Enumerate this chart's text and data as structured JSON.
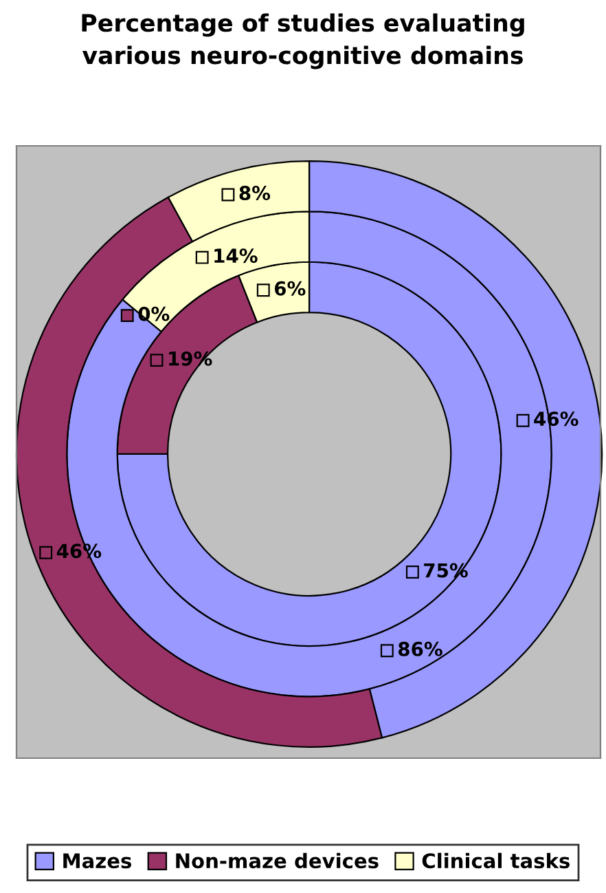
{
  "chart_data": {
    "type": "donut",
    "title": "Percentage of studies evaluating\nvarious neuro-cognitive domains",
    "categories": [
      "Mazes",
      "Non-maze devices",
      "Clinical tasks"
    ],
    "colors": [
      "#9999ff",
      "#993366",
      "#ffffcc"
    ],
    "series": [
      {
        "values": [
          75,
          19,
          6
        ],
        "value_labels": [
          "75%",
          "19%",
          "6%"
        ]
      },
      {
        "values": [
          86,
          0,
          14
        ],
        "value_labels": [
          "86%",
          "0%",
          "14%"
        ]
      },
      {
        "values": [
          46,
          46,
          8
        ],
        "value_labels": [
          "46%",
          "46%",
          "8%"
        ]
      }
    ],
    "legend": "bottom"
  }
}
